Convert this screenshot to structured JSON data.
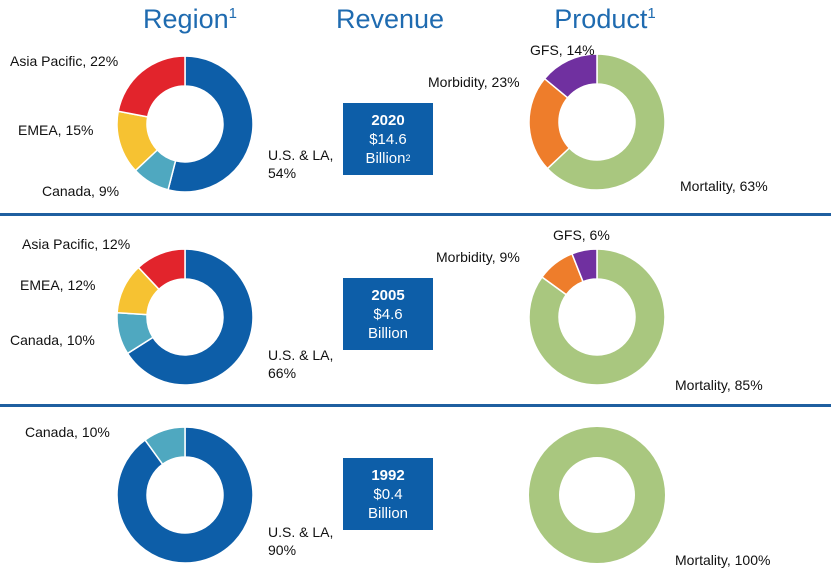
{
  "headers": [
    {
      "text": "Region",
      "sup": "1"
    },
    {
      "text": "Revenue"
    },
    {
      "text": "Product",
      "sup": "1"
    }
  ],
  "revenue": [
    {
      "year": "2020",
      "amount": "$14.6",
      "unit": "Billion",
      "sup": "2"
    },
    {
      "year": "2005",
      "amount": "$4.6",
      "unit": "Billion"
    },
    {
      "year": "1992",
      "amount": "$0.4",
      "unit": "Billion"
    }
  ],
  "chart_data": [
    {
      "type": "pie",
      "donut": true,
      "values": [
        54,
        9,
        15,
        22
      ],
      "colors": [
        "#0d5ea8",
        "#4fa8c0",
        "#f6c232",
        "#e2242c"
      ],
      "value_labels": [
        "U.S. & LA, 54%",
        "Canada, 9%",
        "EMEA, 15%",
        "Asia Pacific, 22%"
      ]
    },
    {
      "type": "pie",
      "donut": true,
      "values": [
        63,
        23,
        14
      ],
      "colors": [
        "#a9c77f",
        "#ee7d2b",
        "#7030a0"
      ],
      "value_labels": [
        "Mortality, 63%",
        "Morbidity, 23%",
        "GFS, 14%"
      ]
    },
    {
      "type": "pie",
      "donut": true,
      "values": [
        66,
        10,
        12,
        12
      ],
      "colors": [
        "#0d5ea8",
        "#4fa8c0",
        "#f6c232",
        "#e2242c"
      ],
      "value_labels": [
        "U.S. & LA, 66%",
        "Canada, 10%",
        "EMEA, 12%",
        "Asia Pacific, 12%"
      ]
    },
    {
      "type": "pie",
      "donut": true,
      "values": [
        85,
        9,
        6
      ],
      "colors": [
        "#a9c77f",
        "#ee7d2b",
        "#7030a0"
      ],
      "value_labels": [
        "Mortality, 85%",
        "Morbidity, 9%",
        "GFS, 6%"
      ]
    },
    {
      "type": "pie",
      "donut": true,
      "values": [
        90,
        10
      ],
      "colors": [
        "#0d5ea8",
        "#4fa8c0"
      ],
      "value_labels": [
        "U.S. & LA, 90%",
        "Canada, 10%"
      ]
    },
    {
      "type": "pie",
      "donut": true,
      "values": [
        100
      ],
      "colors": [
        "#a9c77f"
      ],
      "value_labels": [
        "Mortality, 100%"
      ]
    }
  ]
}
